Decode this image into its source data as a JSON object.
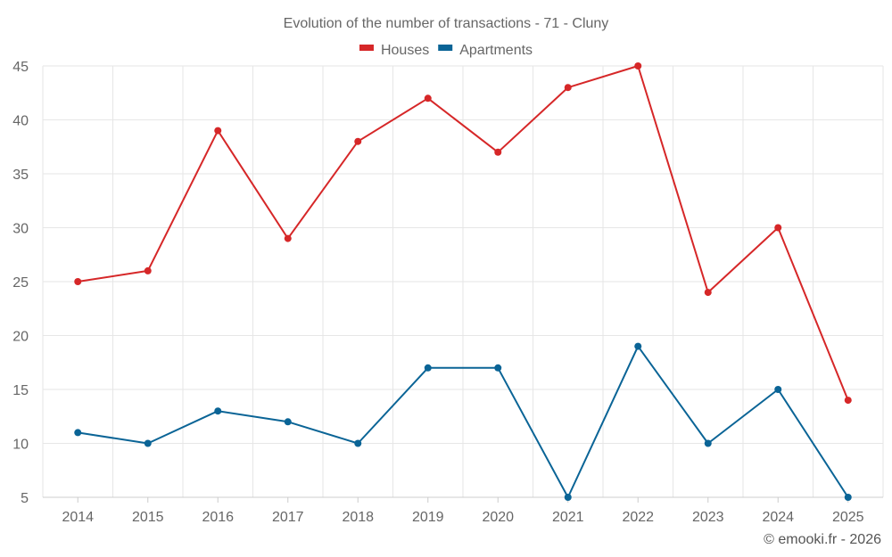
{
  "chart_data": {
    "type": "line",
    "title": "Evolution of the number of transactions - 71 - Cluny",
    "categories": [
      "2014",
      "2015",
      "2016",
      "2017",
      "2018",
      "2019",
      "2020",
      "2021",
      "2022",
      "2023",
      "2024",
      "2025"
    ],
    "series": [
      {
        "name": "Houses",
        "color": "#d62728",
        "values": [
          25,
          26,
          39,
          29,
          38,
          42,
          37,
          43,
          45,
          24,
          30,
          14
        ]
      },
      {
        "name": "Apartments",
        "color": "#0a6496",
        "values": [
          11,
          10,
          13,
          12,
          10,
          17,
          17,
          5,
          19,
          10,
          15,
          5
        ]
      }
    ],
    "ylim": [
      5,
      45
    ],
    "yticks": [
      5,
      10,
      15,
      20,
      25,
      30,
      35,
      40,
      45
    ],
    "xlabel": "",
    "ylabel": "",
    "grid": true,
    "legend": "top-center"
  },
  "credit": "© emooki.fr - 2026"
}
